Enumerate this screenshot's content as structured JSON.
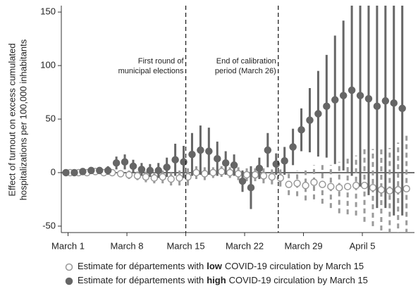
{
  "chart_data": {
    "type": "errorbar",
    "ylabel": [
      "Effect of turnout on excess cumulated",
      "hospitalizations per 100,000 inhabitants"
    ],
    "x": [
      1,
      2,
      3,
      4,
      5,
      6,
      7,
      8,
      9,
      10,
      11,
      12,
      13,
      14,
      15,
      16,
      17,
      18,
      19,
      20,
      21,
      22,
      23,
      24,
      25,
      26,
      27,
      28,
      29,
      30,
      31,
      32,
      33,
      34,
      35,
      36,
      37,
      38,
      39,
      40,
      41
    ],
    "xlim": [
      0.2,
      42.2
    ],
    "xticks": [
      {
        "value": 1,
        "label": "March 1"
      },
      {
        "value": 8,
        "label": "March 8"
      },
      {
        "value": 15,
        "label": "March 15"
      },
      {
        "value": 22,
        "label": "March 22"
      },
      {
        "value": 29,
        "label": "March 29"
      },
      {
        "value": 36,
        "label": "April 5"
      }
    ],
    "ylim": [
      -56,
      156
    ],
    "yticks": [
      -50,
      0,
      50,
      100,
      150
    ],
    "vlines": [
      {
        "value": 15,
        "label": [
          "First round of",
          "municipal elections"
        ]
      },
      {
        "value": 26,
        "label": [
          "End of calibration",
          "period (March 26)"
        ]
      }
    ],
    "series": [
      {
        "name": [
          "Estimate for départements with",
          "low",
          "COVID-19 circulation by March 15"
        ],
        "color": "#9a9a9a",
        "marker": "hollow",
        "values": [
          0,
          0,
          0,
          1,
          0,
          0,
          -1,
          -2,
          -3,
          -4,
          -5,
          -4,
          -6,
          -5,
          -4,
          0,
          -1,
          0,
          1,
          0,
          -1,
          -2,
          -2,
          -3,
          -4,
          -5,
          -11,
          -10,
          -12,
          -9,
          -11,
          -13,
          -14,
          -13,
          -12,
          -12,
          -14,
          -16,
          -17,
          -16,
          -15
        ],
        "errors": [
          1,
          1,
          2,
          2,
          2,
          3,
          3,
          4,
          4,
          5,
          5,
          6,
          6,
          7,
          8,
          6,
          6,
          5,
          5,
          5,
          6,
          6,
          6,
          7,
          7,
          8,
          10,
          12,
          14,
          16,
          18,
          20,
          24,
          26,
          28,
          34,
          36,
          38,
          40,
          44,
          50
        ]
      },
      {
        "name": [
          "Estimate for départements with",
          "high",
          "COVID-19 circulation by March 15"
        ],
        "color": "#666666",
        "marker": "filled",
        "values": [
          0,
          0,
          1,
          2,
          2,
          2,
          9,
          10,
          6,
          3,
          2,
          2,
          5,
          12,
          10,
          17,
          21,
          20,
          13,
          9,
          7,
          -8,
          -14,
          4,
          21,
          8,
          11,
          24,
          40,
          49,
          55,
          62,
          68,
          72,
          77,
          72,
          69,
          62,
          67,
          65,
          60
        ],
        "errors": [
          1,
          2,
          2,
          3,
          3,
          4,
          6,
          7,
          6,
          6,
          6,
          7,
          9,
          15,
          15,
          20,
          23,
          22,
          16,
          11,
          10,
          10,
          20,
          10,
          16,
          10,
          13,
          17,
          20,
          30,
          40,
          48,
          60,
          70,
          80,
          85,
          90,
          95,
          100,
          105,
          100
        ]
      }
    ]
  }
}
